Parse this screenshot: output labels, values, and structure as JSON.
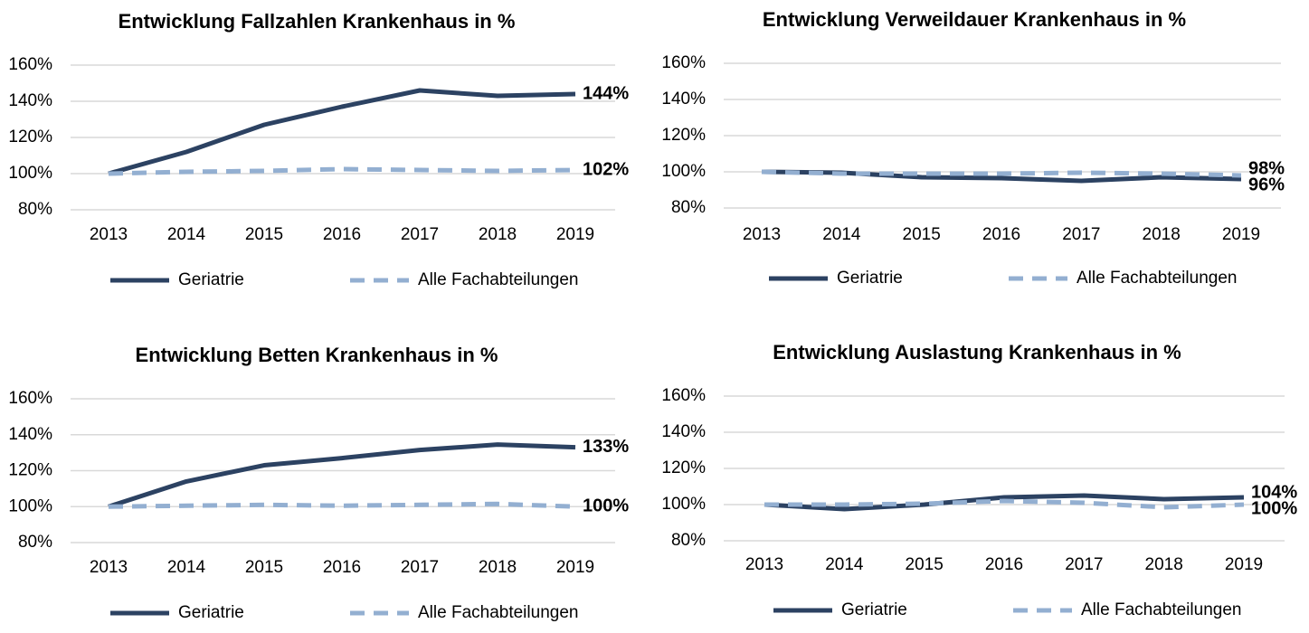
{
  "chart_data": [
    {
      "type": "line",
      "title": "Entwicklung Fallzahlen Krankenhaus in %",
      "categories": [
        "2013",
        "2014",
        "2015",
        "2016",
        "2017",
        "2018",
        "2019"
      ],
      "ylim": [
        80,
        160
      ],
      "yticks": [
        {
          "value": 80,
          "label": "80%"
        },
        {
          "value": 100,
          "label": "100%"
        },
        {
          "value": 120,
          "label": "120%"
        },
        {
          "value": 140,
          "label": "140%"
        },
        {
          "value": 160,
          "label": "160%"
        }
      ],
      "grid": true,
      "series": [
        {
          "name": "Geriatrie",
          "color": "#2c4262",
          "dashed": false,
          "values": [
            100,
            112,
            127,
            137,
            146,
            143,
            144
          ],
          "value_labels": [
            null,
            null,
            null,
            null,
            null,
            null,
            "144%"
          ]
        },
        {
          "name": "Alle Fachabteilungen",
          "color": "#93afd1",
          "dashed": true,
          "values": [
            100,
            101,
            101.5,
            102.5,
            102,
            101.5,
            102
          ],
          "value_labels": [
            null,
            null,
            null,
            null,
            null,
            null,
            "102%"
          ]
        }
      ]
    },
    {
      "type": "line",
      "title": "Entwicklung Verweildauer Krankenhaus in %",
      "categories": [
        "2013",
        "2014",
        "2015",
        "2016",
        "2017",
        "2018",
        "2019"
      ],
      "ylim": [
        80,
        160
      ],
      "yticks": [
        {
          "value": 80,
          "label": "80%"
        },
        {
          "value": 100,
          "label": "100%"
        },
        {
          "value": 120,
          "label": "120%"
        },
        {
          "value": 140,
          "label": "140%"
        },
        {
          "value": 160,
          "label": "160%"
        }
      ],
      "grid": true,
      "series": [
        {
          "name": "Geriatrie",
          "color": "#2c4262",
          "dashed": false,
          "values": [
            100,
            99.5,
            97,
            96.5,
            95,
            97,
            96
          ],
          "value_labels": [
            null,
            null,
            null,
            null,
            null,
            null,
            "96%"
          ]
        },
        {
          "name": "Alle Fachabteilungen",
          "color": "#93afd1",
          "dashed": true,
          "values": [
            100,
            99,
            99,
            99,
            99.5,
            99,
            98
          ],
          "value_labels": [
            null,
            null,
            null,
            null,
            null,
            null,
            "98%"
          ]
        }
      ]
    },
    {
      "type": "line",
      "title": "Entwicklung Betten Krankenhaus in %",
      "categories": [
        "2013",
        "2014",
        "2015",
        "2016",
        "2017",
        "2018",
        "2019"
      ],
      "ylim": [
        80,
        160
      ],
      "yticks": [
        {
          "value": 80,
          "label": "80%"
        },
        {
          "value": 100,
          "label": "100%"
        },
        {
          "value": 120,
          "label": "120%"
        },
        {
          "value": 140,
          "label": "140%"
        },
        {
          "value": 160,
          "label": "160%"
        }
      ],
      "grid": true,
      "series": [
        {
          "name": "Geriatrie",
          "color": "#2c4262",
          "dashed": false,
          "values": [
            100,
            114,
            123,
            127,
            131.5,
            134.5,
            133
          ],
          "value_labels": [
            null,
            null,
            null,
            null,
            null,
            null,
            "133%"
          ]
        },
        {
          "name": "Alle Fachabteilungen",
          "color": "#93afd1",
          "dashed": true,
          "values": [
            100,
            100.5,
            101,
            100.5,
            101,
            101.5,
            100
          ],
          "value_labels": [
            null,
            null,
            null,
            null,
            null,
            null,
            "100%"
          ]
        }
      ]
    },
    {
      "type": "line",
      "title": "Entwicklung Auslastung Krankenhaus in %",
      "categories": [
        "2013",
        "2014",
        "2015",
        "2016",
        "2017",
        "2018",
        "2019"
      ],
      "ylim": [
        80,
        160
      ],
      "yticks": [
        {
          "value": 80,
          "label": "80%"
        },
        {
          "value": 100,
          "label": "100%"
        },
        {
          "value": 120,
          "label": "120%"
        },
        {
          "value": 140,
          "label": "140%"
        },
        {
          "value": 160,
          "label": "160%"
        }
      ],
      "grid": true,
      "series": [
        {
          "name": "Geriatrie",
          "color": "#2c4262",
          "dashed": false,
          "values": [
            100,
            97.5,
            100,
            104,
            105,
            103,
            104
          ],
          "value_labels": [
            null,
            null,
            null,
            null,
            null,
            null,
            "104%"
          ]
        },
        {
          "name": "Alle Fachabteilungen",
          "color": "#93afd1",
          "dashed": true,
          "values": [
            100,
            100,
            100.5,
            102,
            101,
            98.5,
            100
          ],
          "value_labels": [
            null,
            null,
            null,
            null,
            null,
            null,
            "100%"
          ]
        }
      ]
    }
  ]
}
